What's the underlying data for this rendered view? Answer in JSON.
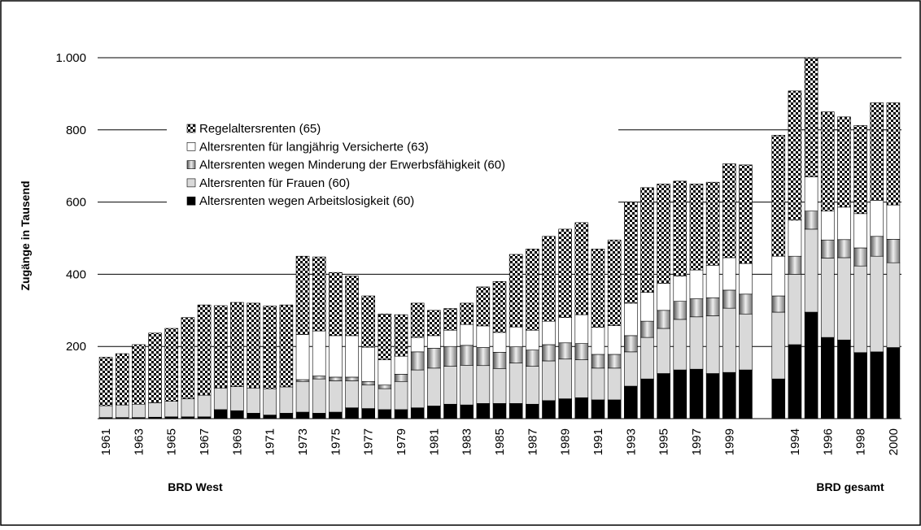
{
  "chart_data": {
    "type": "stacked-bar",
    "y_label": "Zugänge in Tausend",
    "categories": [
      "1961",
      null,
      "1963",
      null,
      "1965",
      null,
      "1967",
      null,
      "1969",
      null,
      "1971",
      null,
      "1973",
      null,
      "1975",
      null,
      "1977",
      null,
      "1979",
      null,
      "1981",
      null,
      "1983",
      null,
      "1985",
      null,
      "1987",
      null,
      "1989",
      null,
      "1991",
      null,
      "1993",
      null,
      "1995",
      null,
      "1997",
      null,
      "1999",
      null,
      null,
      null,
      "1994",
      null,
      "1996",
      null,
      "1998",
      null,
      "2000"
    ],
    "group_labels": [
      "BRD West",
      "BRD gesamt"
    ],
    "ylim": [
      0,
      1000
    ],
    "yticks": [
      200,
      400,
      600,
      800,
      {
        "value": 1000,
        "label": "1.000"
      }
    ],
    "grid": true,
    "series": [
      {
        "name": "Altersrenten wegen Arbeitslosigkeit (60)",
        "color": "#000000",
        "values": [
          3,
          3,
          3,
          4,
          5,
          5,
          5,
          25,
          22,
          15,
          10,
          15,
          18,
          15,
          18,
          30,
          28,
          25,
          25,
          30,
          35,
          40,
          38,
          42,
          42,
          42,
          40,
          50,
          55,
          58,
          52,
          52,
          90,
          110,
          125,
          135,
          137,
          125,
          128,
          135,
          null,
          110,
          205,
          295,
          225,
          218,
          183,
          185,
          197
        ]
      },
      {
        "name": "Altersrenten für Frauen (60)",
        "color": "#d9d9d9",
        "values": [
          33,
          35,
          37,
          40,
          43,
          50,
          60,
          60,
          67,
          70,
          73,
          73,
          85,
          95,
          87,
          75,
          65,
          58,
          78,
          105,
          105,
          105,
          110,
          105,
          97,
          112,
          105,
          110,
          110,
          105,
          88,
          88,
          95,
          115,
          125,
          140,
          145,
          160,
          178,
          155,
          null,
          185,
          195,
          230,
          220,
          228,
          240,
          265,
          235
        ]
      },
      {
        "name": "Altersrenten wegen Minderung der Erwerbsfähigkeit (60)",
        "color": "#999999",
        "pattern": "gradient",
        "values": [
          0,
          0,
          0,
          0,
          0,
          0,
          0,
          0,
          0,
          0,
          0,
          0,
          5,
          8,
          10,
          10,
          10,
          10,
          20,
          50,
          55,
          55,
          55,
          50,
          45,
          45,
          45,
          45,
          45,
          45,
          38,
          38,
          45,
          45,
          50,
          50,
          50,
          50,
          50,
          55,
          null,
          45,
          50,
          50,
          50,
          50,
          50,
          55,
          65
        ]
      },
      {
        "name": "Altersrenten für langjährig Versicherte (63)",
        "color": "#ffffff",
        "values": [
          0,
          0,
          0,
          0,
          0,
          0,
          0,
          0,
          0,
          0,
          0,
          0,
          125,
          125,
          115,
          115,
          95,
          70,
          50,
          40,
          35,
          45,
          58,
          60,
          55,
          55,
          55,
          65,
          70,
          80,
          75,
          80,
          90,
          80,
          75,
          70,
          80,
          90,
          90,
          85,
          null,
          110,
          100,
          95,
          80,
          90,
          95,
          100,
          95
        ]
      },
      {
        "name": "Regelaltersrenten (65)",
        "color": "#000000",
        "pattern": "checker",
        "values": [
          134,
          142,
          165,
          193,
          202,
          225,
          250,
          228,
          233,
          235,
          229,
          227,
          217,
          205,
          175,
          165,
          142,
          127,
          115,
          95,
          70,
          60,
          59,
          108,
          141,
          201,
          225,
          235,
          245,
          255,
          217,
          237,
          280,
          290,
          275,
          263,
          238,
          230,
          260,
          273,
          null,
          335,
          358,
          330,
          275,
          250,
          244,
          270,
          283
        ]
      }
    ]
  }
}
